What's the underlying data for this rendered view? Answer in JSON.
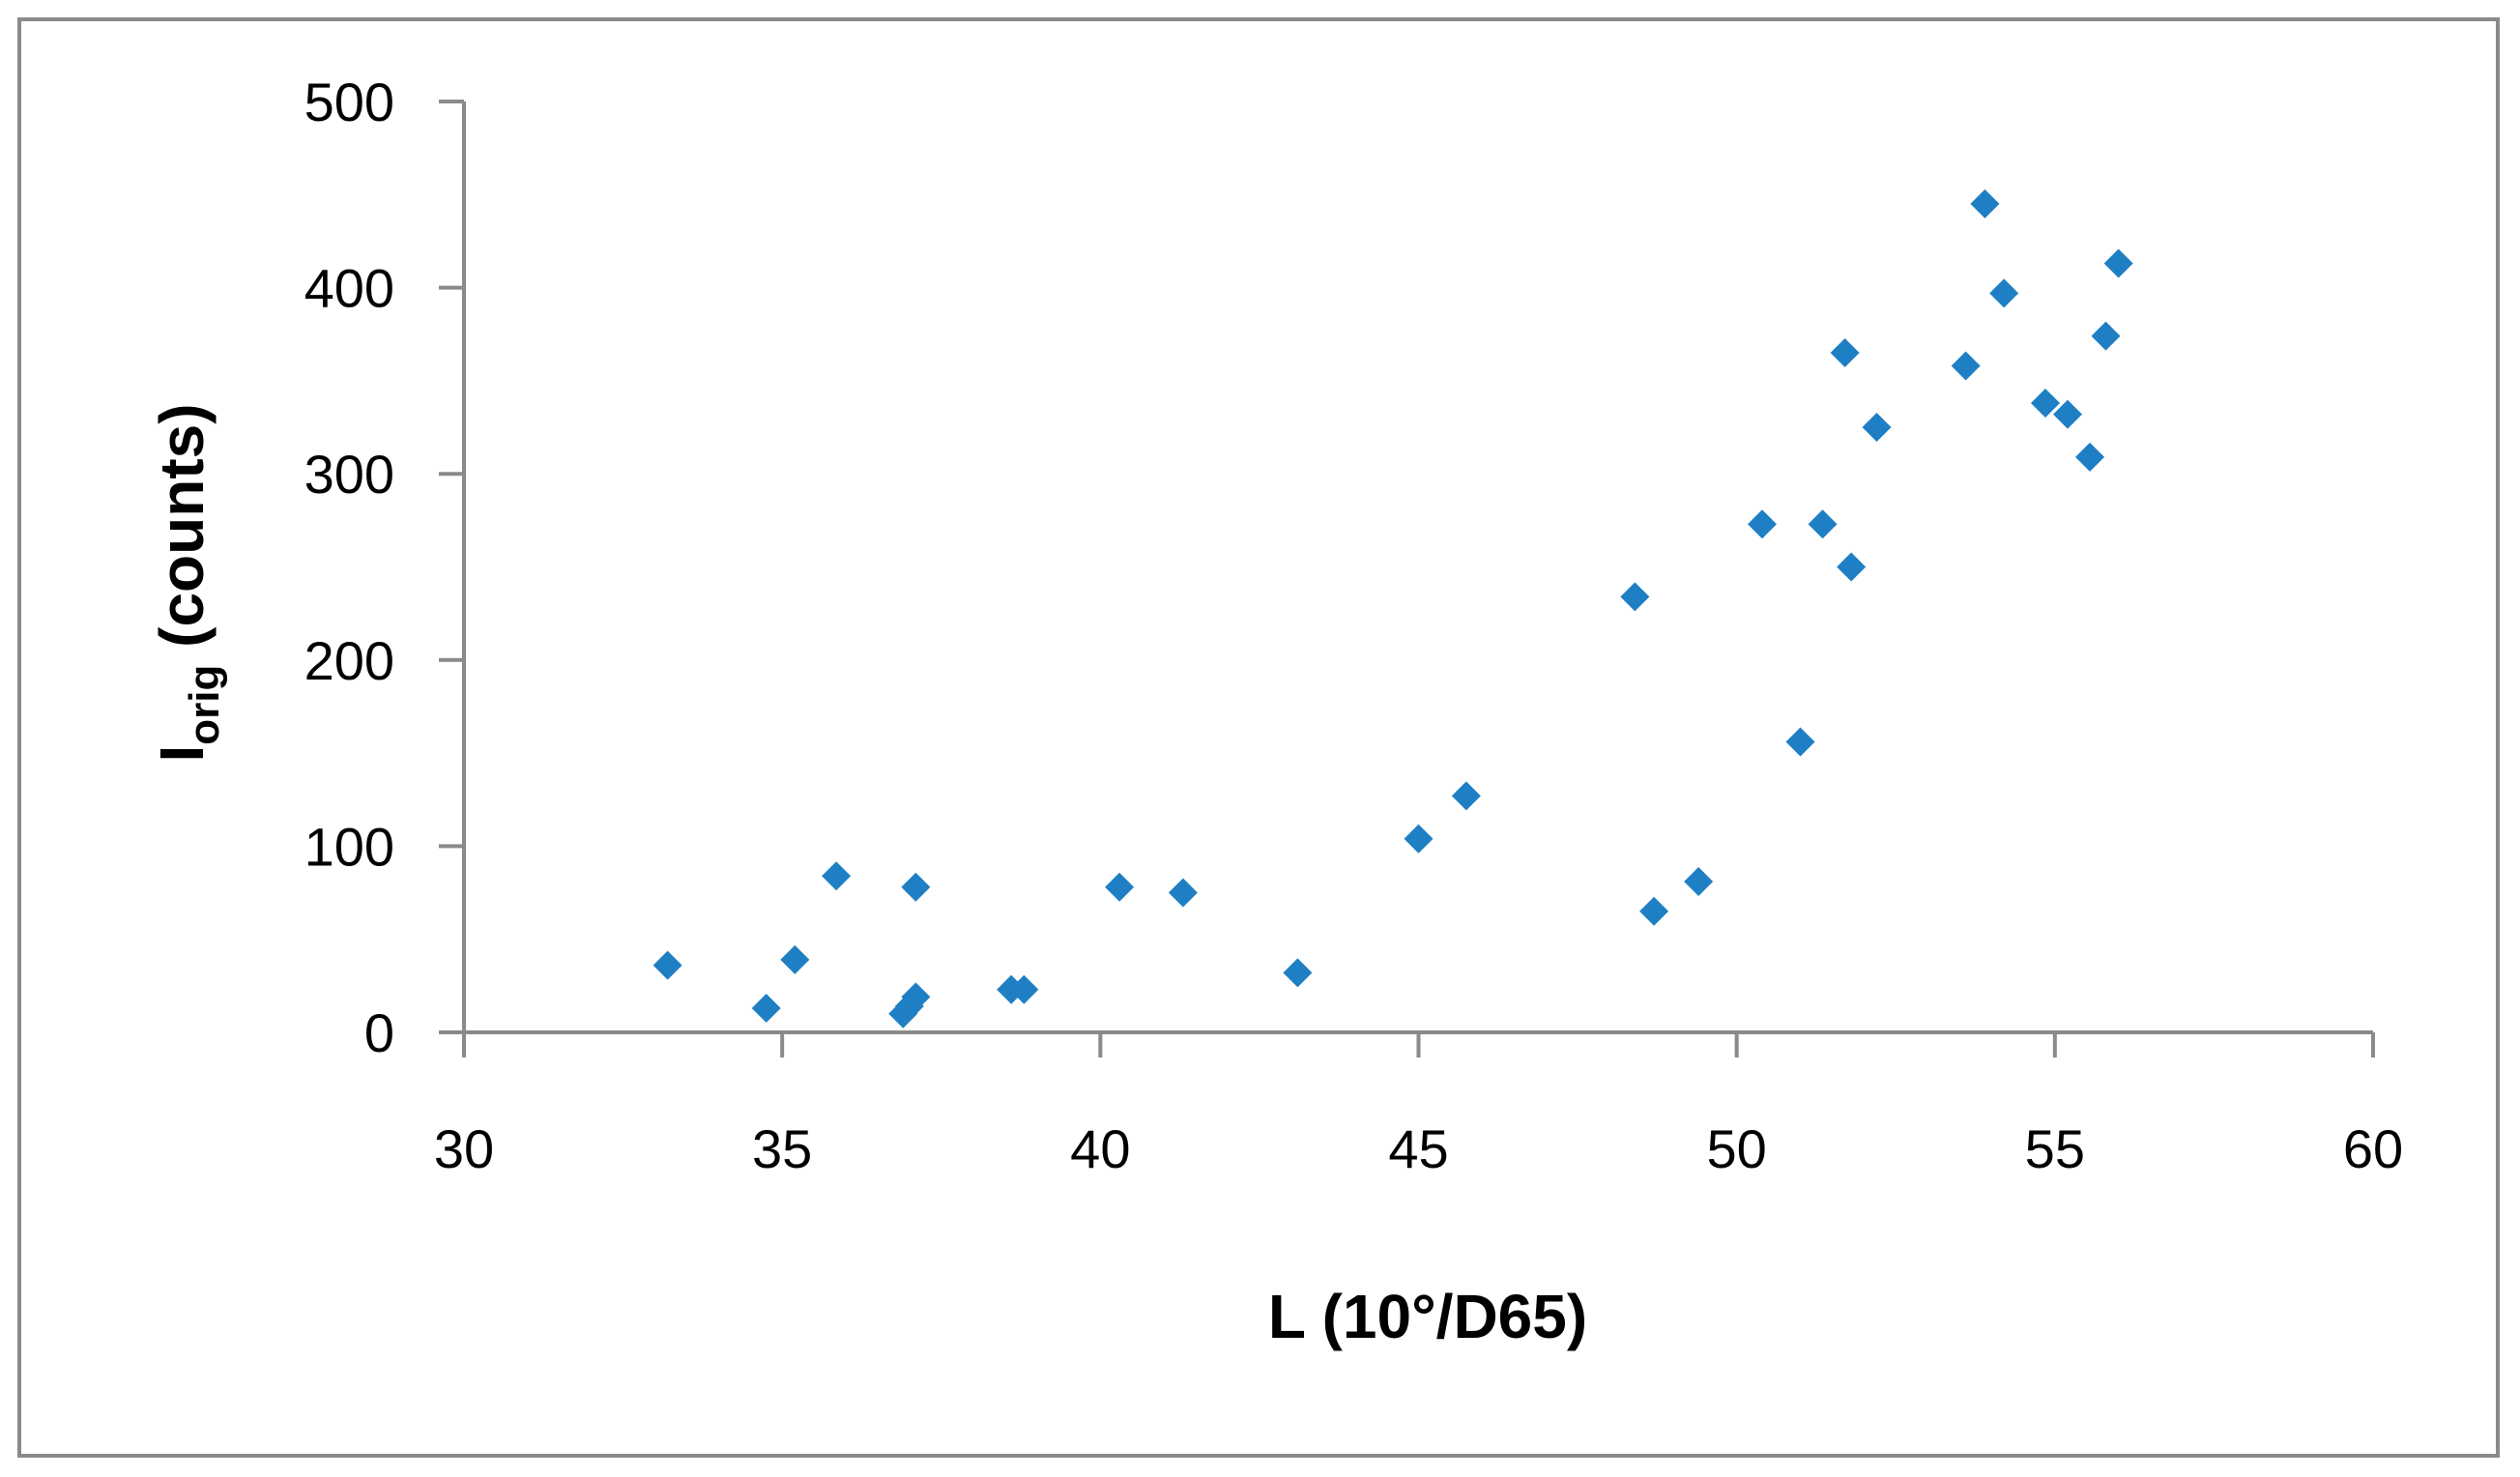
{
  "chart_data": {
    "type": "scatter",
    "xlabel": "L (10°/D65)",
    "ylabel": {
      "main": "I",
      "subscript": "orig",
      "rest": " (counts)"
    },
    "xlim": [
      30,
      60
    ],
    "ylim": [
      0,
      500
    ],
    "x_ticks": [
      30,
      35,
      40,
      45,
      50,
      55,
      60
    ],
    "y_ticks": [
      0,
      100,
      200,
      300,
      400,
      500
    ],
    "grid": false,
    "legend": "none",
    "marker": "diamond",
    "colors": {
      "marker": "#1f7fc4",
      "axis": "#8a8a8a",
      "frame": "#8a8a8a"
    },
    "series": [
      {
        "points": [
          {
            "x": 33.2,
            "y": 36
          },
          {
            "x": 34.75,
            "y": 13
          },
          {
            "x": 35.2,
            "y": 39
          },
          {
            "x": 35.85,
            "y": 84
          },
          {
            "x": 36.9,
            "y": 10
          },
          {
            "x": 37.0,
            "y": 14
          },
          {
            "x": 37.1,
            "y": 19
          },
          {
            "x": 37.1,
            "y": 78
          },
          {
            "x": 38.6,
            "y": 23
          },
          {
            "x": 38.8,
            "y": 23
          },
          {
            "x": 40.3,
            "y": 78
          },
          {
            "x": 41.3,
            "y": 75
          },
          {
            "x": 43.1,
            "y": 32
          },
          {
            "x": 45.0,
            "y": 104
          },
          {
            "x": 45.75,
            "y": 127
          },
          {
            "x": 48.4,
            "y": 234
          },
          {
            "x": 48.7,
            "y": 65
          },
          {
            "x": 49.4,
            "y": 81
          },
          {
            "x": 50.4,
            "y": 273
          },
          {
            "x": 51.0,
            "y": 156
          },
          {
            "x": 51.35,
            "y": 273
          },
          {
            "x": 51.7,
            "y": 365
          },
          {
            "x": 51.8,
            "y": 250
          },
          {
            "x": 52.2,
            "y": 325
          },
          {
            "x": 53.6,
            "y": 358
          },
          {
            "x": 53.9,
            "y": 445
          },
          {
            "x": 54.2,
            "y": 397
          },
          {
            "x": 54.85,
            "y": 338
          },
          {
            "x": 55.2,
            "y": 332
          },
          {
            "x": 55.55,
            "y": 309
          },
          {
            "x": 55.8,
            "y": 374
          },
          {
            "x": 56.0,
            "y": 413
          }
        ]
      }
    ]
  }
}
